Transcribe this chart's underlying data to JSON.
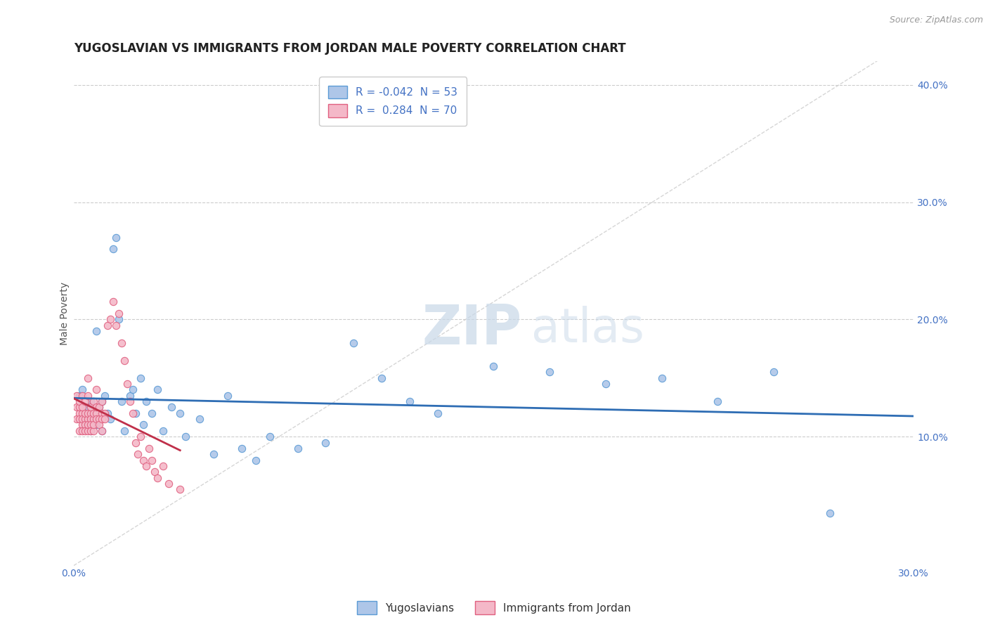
{
  "title": "YUGOSLAVIAN VS IMMIGRANTS FROM JORDAN MALE POVERTY CORRELATION CHART",
  "source": "Source: ZipAtlas.com",
  "ylabel": "Male Poverty",
  "ylabel_right_ticks": [
    "10.0%",
    "20.0%",
    "30.0%",
    "40.0%"
  ],
  "ylabel_right_vals": [
    0.1,
    0.2,
    0.3,
    0.4
  ],
  "xlim": [
    0.0,
    0.3
  ],
  "ylim": [
    -0.01,
    0.42
  ],
  "legend_label_1": "Yugoslavians",
  "legend_label_2": "Immigrants from Jordan",
  "blue_color": "#aec6e8",
  "pink_color": "#f4b8c8",
  "blue_edge": "#5b9bd5",
  "pink_edge": "#e06080",
  "trend_blue_color": "#2e6db4",
  "trend_pink_color": "#c0304a",
  "background_color": "#ffffff",
  "grid_color": "#cccccc",
  "title_fontsize": 12,
  "axis_label_fontsize": 10,
  "tick_fontsize": 10,
  "blue_scatter_x": [
    0.002,
    0.003,
    0.004,
    0.004,
    0.005,
    0.005,
    0.006,
    0.006,
    0.007,
    0.008,
    0.008,
    0.009,
    0.01,
    0.01,
    0.011,
    0.012,
    0.013,
    0.014,
    0.015,
    0.016,
    0.017,
    0.018,
    0.02,
    0.021,
    0.022,
    0.024,
    0.025,
    0.026,
    0.028,
    0.03,
    0.032,
    0.035,
    0.038,
    0.04,
    0.045,
    0.05,
    0.055,
    0.06,
    0.065,
    0.07,
    0.08,
    0.09,
    0.1,
    0.11,
    0.12,
    0.13,
    0.15,
    0.17,
    0.19,
    0.21,
    0.23,
    0.25,
    0.27
  ],
  "blue_scatter_y": [
    0.135,
    0.14,
    0.12,
    0.11,
    0.125,
    0.115,
    0.105,
    0.13,
    0.12,
    0.19,
    0.11,
    0.125,
    0.13,
    0.105,
    0.135,
    0.12,
    0.115,
    0.26,
    0.27,
    0.2,
    0.13,
    0.105,
    0.135,
    0.14,
    0.12,
    0.15,
    0.11,
    0.13,
    0.12,
    0.14,
    0.105,
    0.125,
    0.12,
    0.1,
    0.115,
    0.085,
    0.135,
    0.09,
    0.08,
    0.1,
    0.09,
    0.095,
    0.18,
    0.15,
    0.13,
    0.12,
    0.16,
    0.155,
    0.145,
    0.15,
    0.13,
    0.155,
    0.035
  ],
  "pink_scatter_x": [
    0.001,
    0.001,
    0.001,
    0.002,
    0.002,
    0.002,
    0.002,
    0.002,
    0.003,
    0.003,
    0.003,
    0.003,
    0.003,
    0.003,
    0.004,
    0.004,
    0.004,
    0.004,
    0.004,
    0.005,
    0.005,
    0.005,
    0.005,
    0.005,
    0.005,
    0.006,
    0.006,
    0.006,
    0.006,
    0.006,
    0.007,
    0.007,
    0.007,
    0.007,
    0.007,
    0.008,
    0.008,
    0.008,
    0.008,
    0.009,
    0.009,
    0.009,
    0.01,
    0.01,
    0.01,
    0.01,
    0.011,
    0.011,
    0.012,
    0.013,
    0.014,
    0.015,
    0.016,
    0.017,
    0.018,
    0.019,
    0.02,
    0.021,
    0.022,
    0.023,
    0.024,
    0.025,
    0.026,
    0.027,
    0.028,
    0.029,
    0.03,
    0.032,
    0.034,
    0.038
  ],
  "pink_scatter_y": [
    0.125,
    0.135,
    0.115,
    0.12,
    0.115,
    0.105,
    0.125,
    0.13,
    0.12,
    0.11,
    0.105,
    0.125,
    0.135,
    0.115,
    0.115,
    0.11,
    0.12,
    0.13,
    0.105,
    0.115,
    0.105,
    0.12,
    0.135,
    0.11,
    0.15,
    0.12,
    0.115,
    0.125,
    0.11,
    0.105,
    0.115,
    0.12,
    0.13,
    0.105,
    0.11,
    0.12,
    0.115,
    0.125,
    0.14,
    0.115,
    0.125,
    0.11,
    0.12,
    0.115,
    0.105,
    0.13,
    0.12,
    0.115,
    0.195,
    0.2,
    0.215,
    0.195,
    0.205,
    0.18,
    0.165,
    0.145,
    0.13,
    0.12,
    0.095,
    0.085,
    0.1,
    0.08,
    0.075,
    0.09,
    0.08,
    0.07,
    0.065,
    0.075,
    0.06,
    0.055
  ]
}
